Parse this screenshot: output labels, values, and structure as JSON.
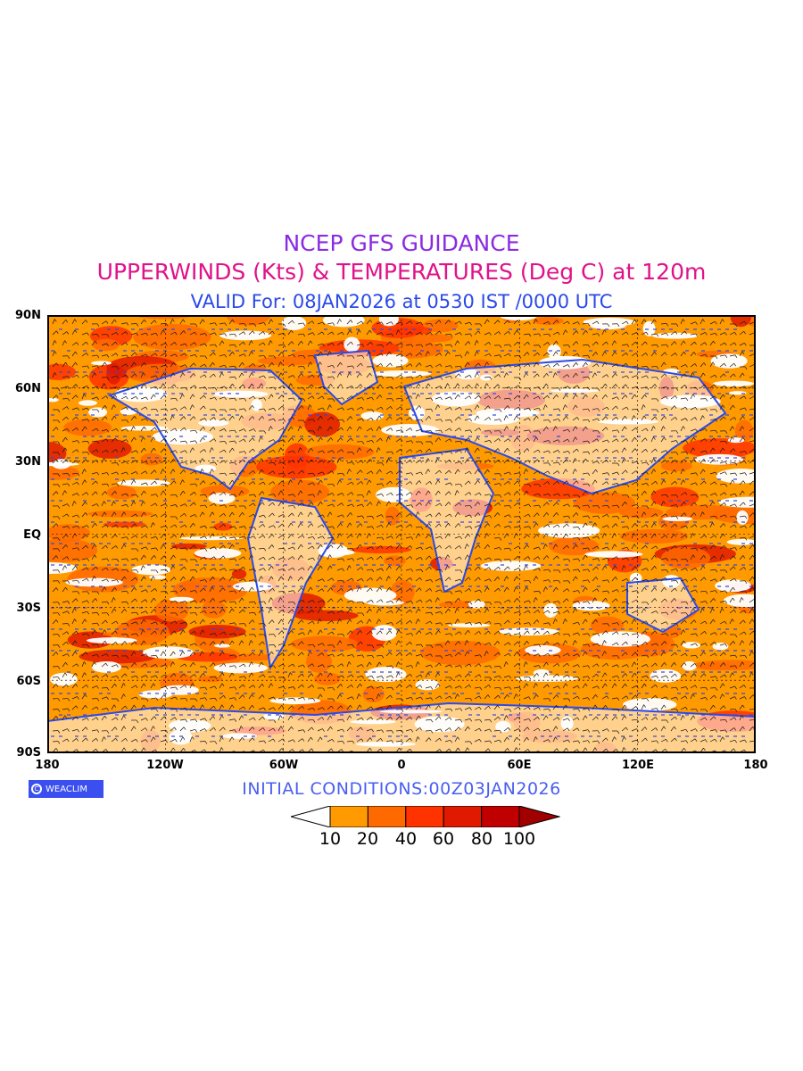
{
  "header": {
    "title": "NCEP GFS GUIDANCE",
    "subtitle": "UPPERWINDS (Kts) & TEMPERATURES (Deg C) at 120m",
    "valid": "VALID For: 08JAN2026 at 0530 IST /0000 UTC"
  },
  "colors": {
    "title": "#8a2be2",
    "subtitle": "#e0138a",
    "valid": "#2b4ae8",
    "coastline": "#2b4ae8",
    "init": "#4a5ef0",
    "logo_bg": "#3b4ef0"
  },
  "map": {
    "lat_labels": [
      "90N",
      "60N",
      "30N",
      "EQ",
      "30S",
      "60S",
      "90S"
    ],
    "lon_labels": [
      "180",
      "120W",
      "60W",
      "0",
      "60E",
      "120E",
      "180"
    ]
  },
  "footer": {
    "initial_conditions": "INITIAL CONDITIONS:00Z03JAN2026",
    "logo_text": "WEACLIM"
  },
  "legend": {
    "levels": [
      "10",
      "20",
      "40",
      "60",
      "80",
      "100"
    ],
    "colors": [
      "#ffffff",
      "#ff9a00",
      "#ff6a00",
      "#ff3300",
      "#e01a00",
      "#c00000",
      "#a00000"
    ]
  }
}
